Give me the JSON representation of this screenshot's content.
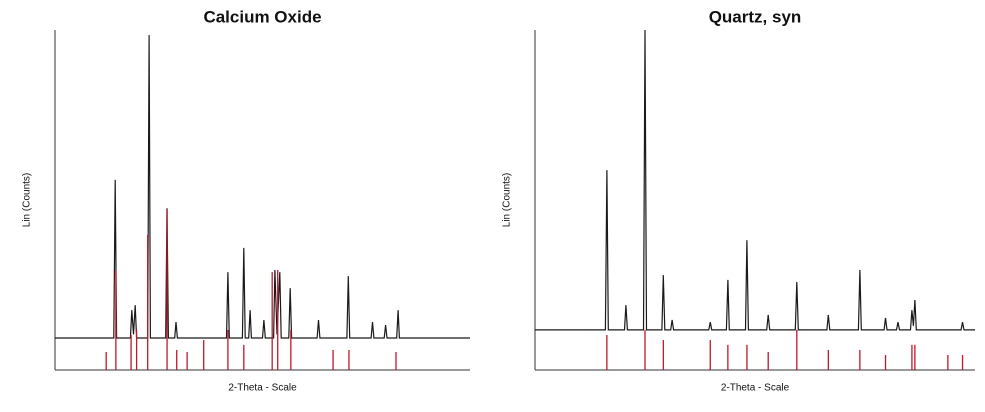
{
  "chart_data": [
    {
      "type": "line",
      "title": "Calcium Oxide",
      "x_label": "2-Theta - Scale",
      "y_label": "Lin (Counts)",
      "xlim": [
        10,
        70
      ],
      "ylim": [
        0,
        100
      ],
      "color": "#1a1a1a",
      "x": [
        10,
        18.5,
        18.7,
        18.9,
        20.9,
        21.1,
        21.35,
        21.6,
        21.8,
        23.4,
        23.6,
        23.8,
        26.0,
        26.2,
        26.4,
        27.3,
        27.5,
        27.7,
        34.8,
        35.0,
        35.2,
        37.1,
        37.3,
        37.5,
        38.0,
        38.2,
        38.4,
        40.0,
        40.2,
        40.4,
        41.6,
        41.8,
        42.1,
        42.5,
        42.7,
        43.8,
        44.0,
        44.2,
        47.9,
        48.1,
        48.3,
        52.2,
        52.4,
        52.6,
        55.7,
        55.9,
        56.1,
        57.6,
        57.8,
        58.0,
        59.4,
        59.6,
        59.8,
        70
      ],
      "values": [
        9.4,
        9.4,
        55.9,
        9.4,
        9.4,
        17.6,
        10.5,
        19.1,
        9.4,
        9.4,
        98.5,
        9.4,
        9.4,
        47.6,
        9.4,
        9.4,
        14.1,
        9.4,
        9.4,
        28.8,
        9.4,
        9.4,
        35.9,
        9.4,
        9.4,
        17.6,
        9.4,
        9.4,
        14.7,
        9.4,
        9.4,
        29.4,
        10.5,
        28.8,
        9.4,
        9.4,
        24.1,
        9.4,
        9.4,
        14.7,
        9.4,
        9.4,
        27.6,
        9.4,
        9.4,
        14.1,
        9.4,
        9.4,
        13.2,
        9.4,
        9.4,
        17.6,
        9.4,
        9.4
      ],
      "reference": {
        "color": "#c0182a",
        "x": [
          17.4,
          18.8,
          21.0,
          21.8,
          23.4,
          26.2,
          27.6,
          29.1,
          31.5,
          35.0,
          37.3,
          41.4,
          42.2,
          44.1,
          50.2,
          52.5,
          59.3
        ],
        "values": [
          5.3,
          29.4,
          10.3,
          11.8,
          39.7,
          47.1,
          5.9,
          5.3,
          8.8,
          11.8,
          7.4,
          28.8,
          29.4,
          11.8,
          5.9,
          5.9,
          5.3
        ]
      }
    },
    {
      "type": "line",
      "title": "Quartz, syn",
      "x_label": "2-Theta - Scale",
      "y_label": "Lin (Counts)",
      "xlim": [
        10,
        70
      ],
      "ylim": [
        0,
        100
      ],
      "color": "#1a1a1a",
      "x": [
        10,
        19.6,
        19.8,
        20.0,
        22.2,
        22.4,
        22.6,
        24.8,
        25.0,
        25.2,
        27.3,
        27.5,
        27.7,
        28.5,
        28.7,
        28.9,
        33.7,
        33.9,
        34.1,
        36.1,
        36.3,
        36.5,
        38.7,
        38.9,
        39.1,
        41.6,
        41.8,
        42.0,
        45.5,
        45.7,
        45.9,
        49.8,
        50.0,
        50.2,
        54.1,
        54.3,
        54.5,
        57.6,
        57.8,
        58.0,
        59.3,
        59.5,
        59.7,
        61.2,
        61.4,
        61.6,
        61.8,
        62.0,
        68.1,
        68.3,
        68.5,
        70
      ],
      "values": [
        11.8,
        11.8,
        58.8,
        11.8,
        11.8,
        19.1,
        11.8,
        11.8,
        100,
        11.8,
        11.8,
        27.9,
        11.8,
        11.8,
        14.7,
        11.8,
        11.8,
        14.1,
        11.8,
        11.8,
        26.5,
        11.8,
        11.8,
        38.2,
        11.8,
        11.8,
        16.2,
        11.8,
        11.8,
        25.9,
        11.8,
        11.8,
        16.2,
        11.8,
        11.8,
        29.4,
        11.8,
        11.8,
        15.3,
        11.8,
        11.8,
        14.1,
        11.8,
        11.8,
        17.6,
        13,
        20.6,
        11.8,
        11.8,
        14.1,
        11.8,
        11.8
      ],
      "reference": {
        "color": "#c0182a",
        "x": [
          19.8,
          25.0,
          27.5,
          33.9,
          36.3,
          38.9,
          41.8,
          45.7,
          50.0,
          54.3,
          57.8,
          61.4,
          61.8,
          66.3,
          68.3
        ],
        "values": [
          10.3,
          11.8,
          8.8,
          8.8,
          7.4,
          7.4,
          5.3,
          11.8,
          5.9,
          5.9,
          4.4,
          7.4,
          7.4,
          4.4,
          4.4
        ]
      }
    }
  ]
}
